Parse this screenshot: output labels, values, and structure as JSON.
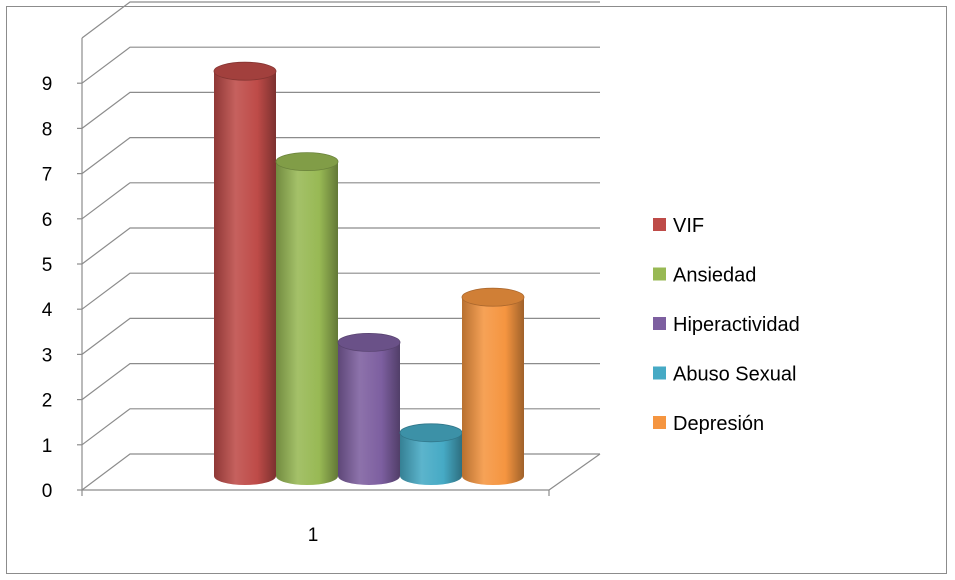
{
  "chart_data": {
    "type": "bar",
    "style": "3d-cylinder",
    "categories": [
      "1"
    ],
    "series": [
      {
        "name": "VIF",
        "values": [
          9
        ],
        "color": "#be4b48"
      },
      {
        "name": "Ansiedad",
        "values": [
          7
        ],
        "color": "#98b954"
      },
      {
        "name": "Hiperactividad",
        "values": [
          3
        ],
        "color": "#7d5fa0"
      },
      {
        "name": "Abuso Sexual",
        "values": [
          1
        ],
        "color": "#46aac5"
      },
      {
        "name": "Depresión",
        "values": [
          4
        ],
        "color": "#f59540"
      }
    ],
    "y_ticks": [
      "0",
      "1",
      "2",
      "3",
      "4",
      "5",
      "6",
      "7",
      "8",
      "9"
    ],
    "ylim": [
      0,
      9
    ],
    "grid": true,
    "legend": "right"
  }
}
